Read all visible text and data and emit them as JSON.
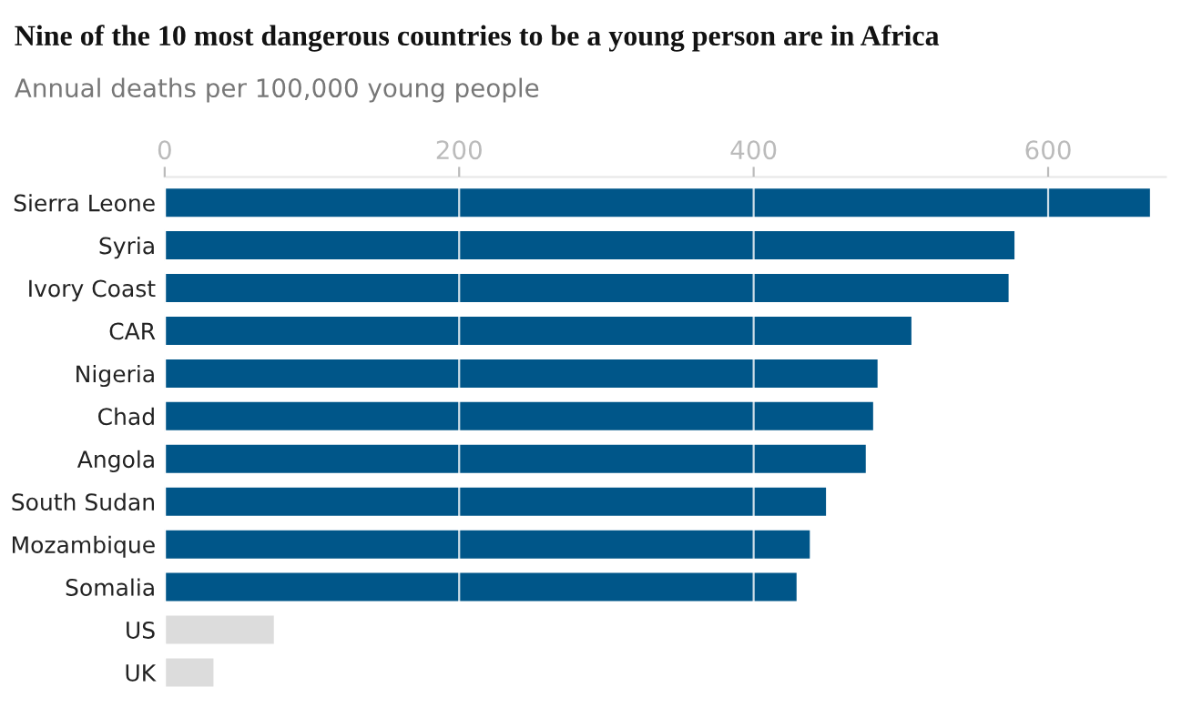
{
  "chart_data": {
    "type": "bar",
    "orientation": "horizontal",
    "title": "Nine of the 10 most dangerous countries to be a young person are in Africa",
    "subtitle": "Annual deaths per 100,000 young people",
    "categories": [
      "Sierra Leone",
      "Syria",
      "Ivory Coast",
      "CAR",
      "Nigeria",
      "Chad",
      "Angola",
      "South Sudan",
      "Mozambique",
      "Somalia",
      "US",
      "UK"
    ],
    "values": [
      670,
      578,
      574,
      508,
      485,
      482,
      477,
      450,
      439,
      430,
      75,
      34
    ],
    "colors": [
      "#005689",
      "#005689",
      "#005689",
      "#005689",
      "#005689",
      "#005689",
      "#005689",
      "#005689",
      "#005689",
      "#005689",
      "#dcdcdc",
      "#dcdcdc"
    ],
    "xlim": [
      0,
      680
    ],
    "xticks": [
      0,
      200,
      400,
      600
    ],
    "grid": "x",
    "legend": false
  }
}
